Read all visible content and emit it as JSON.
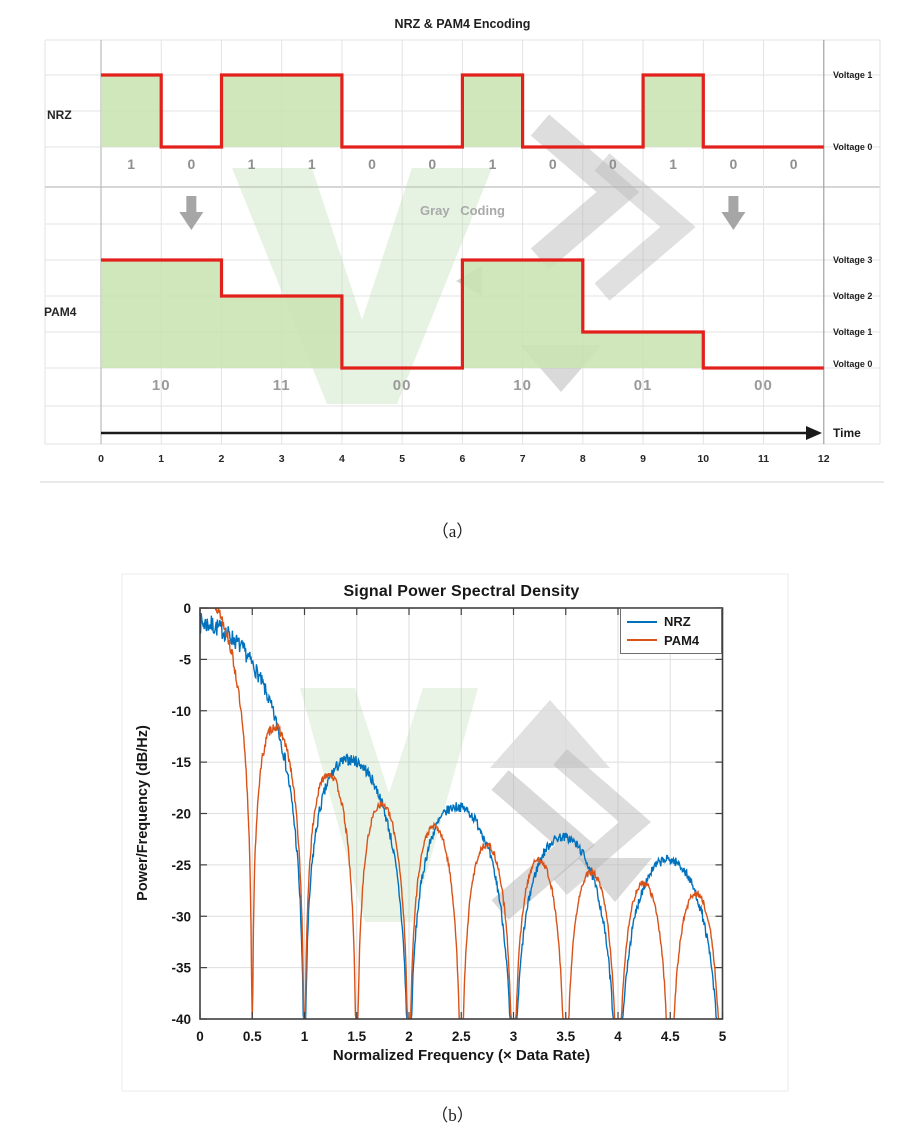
{
  "captions": {
    "a": "（a）",
    "b": "（b）"
  },
  "chart_data": [
    {
      "id": "nrz-pam4-encoding",
      "type": "step-waveform",
      "title": "NRZ & PAM4 Encoding",
      "time_axis": {
        "label": "Time",
        "ticks": [
          "0",
          "1",
          "2",
          "3",
          "4",
          "5",
          "6",
          "7",
          "8",
          "9",
          "10",
          "11",
          "12"
        ]
      },
      "nrz": {
        "row_label": "NRZ",
        "bits": [
          "1",
          "0",
          "1",
          "1",
          "0",
          "0",
          "1",
          "0",
          "0",
          "1",
          "0",
          "0"
        ],
        "voltage_labels": [
          "Voltage 1",
          "Voltage 0"
        ]
      },
      "gray_coding_label": "Gray Coding",
      "pam4": {
        "row_label": "PAM4",
        "symbols": [
          "10",
          "11",
          "00",
          "10",
          "01",
          "00"
        ],
        "symbol_levels": [
          3,
          2,
          0,
          3,
          1,
          0
        ],
        "voltage_labels": [
          "Voltage 3",
          "Voltage 2",
          "Voltage 1",
          "Voltage 0"
        ]
      },
      "colors": {
        "signal": "#e2211c",
        "fill": "#c9e2b2",
        "grid": "#e3e3e3",
        "muted_text": "#8f8f8f",
        "arrow": "#a6a6a6"
      }
    },
    {
      "id": "signal-psd",
      "type": "line",
      "title": "Signal Power Spectral Density",
      "xlabel": "Normalized Frequency (× Data Rate)",
      "ylabel": "Power/Frequency (dB/Hz)",
      "xlim": [
        0,
        5
      ],
      "ylim": [
        -40,
        0
      ],
      "xticks": [
        "0",
        "0.5",
        "1",
        "1.5",
        "2",
        "2.5",
        "3",
        "3.5",
        "4",
        "4.5",
        "5"
      ],
      "yticks": [
        "0",
        "-5",
        "-10",
        "-15",
        "-20",
        "-25",
        "-30",
        "-35",
        "-40"
      ],
      "grid": true,
      "legend": {
        "position": "top-right",
        "entries": [
          "NRZ",
          "PAM4"
        ]
      },
      "series": [
        {
          "name": "NRZ",
          "color": "#0072BD",
          "model": "sinc2",
          "null_spacing": 1.0,
          "peak_offset_db": -1.5,
          "nulls_x": [
            1,
            2,
            3,
            4,
            5
          ],
          "lobe_peaks": [
            {
              "x": 0.0,
              "y": -1.5
            },
            {
              "x": 1.5,
              "y": -15.0
            },
            {
              "x": 2.5,
              "y": -19.4
            },
            {
              "x": 3.5,
              "y": -22.3
            },
            {
              "x": 4.5,
              "y": -24.5
            }
          ],
          "noise_band_db": {
            "base": 0.45,
            "extra": 0.6,
            "decay": 1.2
          }
        },
        {
          "name": "PAM4",
          "color": "#D95319",
          "model": "sinc2",
          "null_spacing": 0.5,
          "peak_offset_db": 1.7,
          "nulls_x": [
            0.5,
            1,
            1.5,
            2,
            2.5,
            3,
            3.5,
            4,
            4.5,
            5
          ],
          "lobe_peaks": [
            {
              "x": 0.75,
              "y": -11.8
            },
            {
              "x": 1.25,
              "y": -16.2
            },
            {
              "x": 1.75,
              "y": -19.1
            },
            {
              "x": 2.25,
              "y": -21.3
            },
            {
              "x": 2.75,
              "y": -23.1
            },
            {
              "x": 3.25,
              "y": -24.7
            },
            {
              "x": 3.75,
              "y": -26.0
            },
            {
              "x": 4.25,
              "y": -27.2
            },
            {
              "x": 4.75,
              "y": -28.2
            }
          ],
          "noise_band_db": {
            "base": 0.3,
            "extra": 0.4,
            "decay": 1.5
          }
        }
      ]
    }
  ],
  "watermark": {
    "green": "#b5d9ac",
    "gray": "#b3b3b3"
  }
}
